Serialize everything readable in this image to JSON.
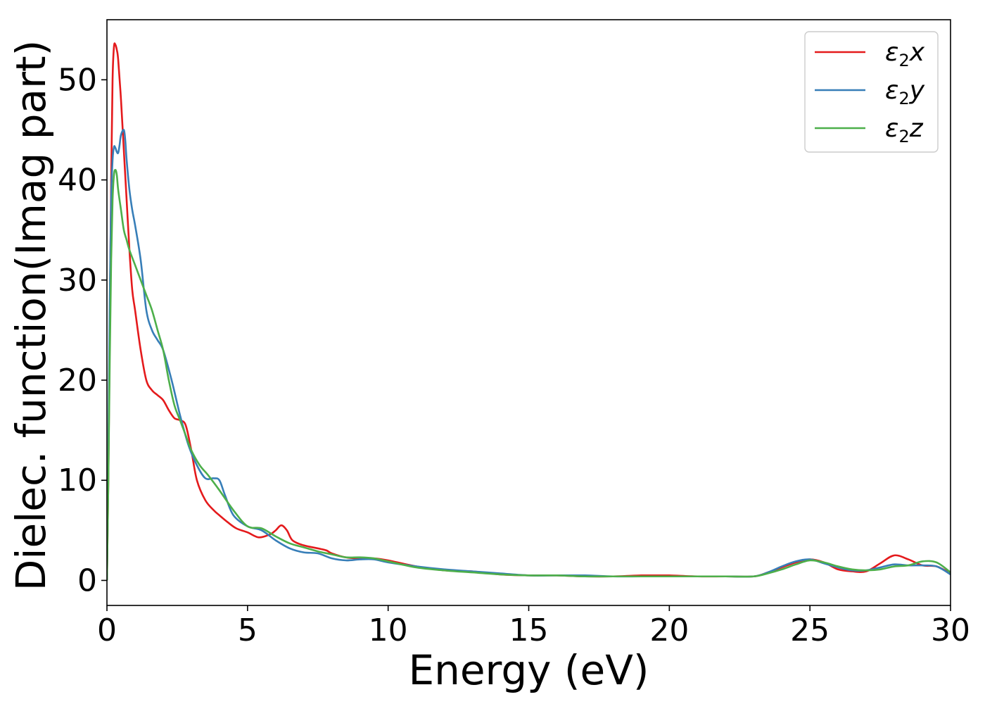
{
  "chart_data": {
    "type": "line",
    "title": "",
    "xlabel": "Energy (eV)",
    "ylabel": "Dielec. function(Imag part)",
    "xlim": [
      0,
      30
    ],
    "ylim": [
      -2.5,
      56
    ],
    "xticks": [
      0,
      5,
      10,
      15,
      20,
      25,
      30
    ],
    "xtick_labels": [
      "0",
      "5",
      "10",
      "15",
      "20",
      "25",
      "30"
    ],
    "yticks": [
      0,
      10,
      20,
      30,
      40,
      50
    ],
    "ytick_labels": [
      "0",
      "10",
      "20",
      "30",
      "40",
      "50"
    ],
    "grid": false,
    "legend_position": "top-right",
    "series": [
      {
        "name": "ε2x",
        "legend_main": "ε",
        "legend_sub": "2",
        "legend_var": "x",
        "color": "#e41a1c",
        "x": [
          0,
          0.05,
          0.1,
          0.15,
          0.2,
          0.25,
          0.3,
          0.35,
          0.4,
          0.5,
          0.6,
          0.7,
          0.8,
          0.9,
          1.0,
          1.2,
          1.4,
          1.6,
          1.8,
          2.0,
          2.2,
          2.4,
          2.6,
          2.8,
          3.0,
          3.2,
          3.5,
          3.8,
          4.0,
          4.3,
          4.6,
          5.0,
          5.4,
          5.8,
          6.0,
          6.2,
          6.4,
          6.6,
          7.0,
          7.5,
          7.8,
          8.0,
          8.5,
          9.0,
          9.5,
          10,
          11,
          12,
          13,
          14,
          15,
          16,
          17,
          18,
          19,
          19.5,
          20,
          21,
          22,
          23,
          23.5,
          24,
          24.5,
          25,
          25.5,
          26,
          26.5,
          27,
          27.5,
          28,
          28.5,
          29,
          29.5,
          30
        ],
        "y": [
          0,
          10,
          25,
          40,
          50,
          53.3,
          53.5,
          53,
          52,
          48,
          43,
          38,
          33,
          29,
          27,
          23,
          20,
          19,
          18.5,
          18,
          17,
          16.2,
          16,
          15.5,
          13,
          10,
          8,
          7,
          6.5,
          5.8,
          5.2,
          4.8,
          4.3,
          4.6,
          5.0,
          5.5,
          5.0,
          4.0,
          3.5,
          3.2,
          3.0,
          2.7,
          2.3,
          2.2,
          2.2,
          2.0,
          1.4,
          1.0,
          0.9,
          0.6,
          0.5,
          0.5,
          0.4,
          0.4,
          0.5,
          0.5,
          0.5,
          0.4,
          0.4,
          0.4,
          0.8,
          1.3,
          1.8,
          2.1,
          1.8,
          1.1,
          0.9,
          0.9,
          1.7,
          2.5,
          2.1,
          1.5,
          1.4,
          0.7
        ]
      },
      {
        "name": "ε2y",
        "legend_main": "ε",
        "legend_sub": "2",
        "legend_var": "y",
        "color": "#377eb8",
        "x": [
          0,
          0.05,
          0.1,
          0.15,
          0.2,
          0.25,
          0.3,
          0.35,
          0.4,
          0.45,
          0.5,
          0.6,
          0.65,
          0.7,
          0.8,
          0.9,
          1.0,
          1.2,
          1.4,
          1.6,
          1.8,
          2.0,
          2.3,
          2.6,
          2.9,
          3.2,
          3.5,
          3.8,
          4.0,
          4.2,
          4.5,
          5.0,
          5.5,
          6.0,
          6.5,
          7.0,
          7.5,
          8.0,
          8.5,
          9.0,
          9.5,
          10,
          11,
          12,
          13,
          14,
          15,
          16,
          17,
          18,
          19,
          20,
          21,
          22,
          23,
          23.5,
          24,
          24.5,
          25,
          25.5,
          26,
          26.5,
          27,
          27.5,
          28,
          28.5,
          29,
          29.5,
          30
        ],
        "y": [
          0,
          12,
          28,
          38,
          42,
          43.3,
          43.2,
          42.8,
          42.7,
          43.5,
          44.5,
          45,
          44,
          42,
          39,
          37,
          35.5,
          32,
          27,
          25,
          24,
          23,
          20,
          16.5,
          13.5,
          11.5,
          10.2,
          10.2,
          10,
          8.5,
          6.5,
          5.4,
          5.0,
          4.0,
          3.2,
          2.8,
          2.7,
          2.2,
          2.0,
          2.1,
          2.1,
          1.8,
          1.4,
          1.1,
          0.9,
          0.7,
          0.5,
          0.5,
          0.5,
          0.4,
          0.4,
          0.4,
          0.4,
          0.4,
          0.4,
          0.8,
          1.4,
          1.9,
          2.1,
          1.7,
          1.3,
          1.0,
          1.0,
          1.3,
          1.6,
          1.5,
          1.5,
          1.4,
          0.6
        ]
      },
      {
        "name": "ε2z",
        "legend_main": "ε",
        "legend_sub": "2",
        "legend_var": "z",
        "color": "#4daf4a",
        "x": [
          0,
          0.05,
          0.1,
          0.15,
          0.2,
          0.25,
          0.3,
          0.35,
          0.4,
          0.5,
          0.6,
          0.7,
          0.8,
          1.0,
          1.2,
          1.4,
          1.6,
          1.8,
          2.0,
          2.2,
          2.4,
          2.6,
          2.8,
          3.0,
          3.3,
          3.6,
          4.0,
          4.5,
          5.0,
          5.5,
          6.0,
          6.5,
          7.0,
          7.5,
          8.0,
          8.5,
          9.0,
          9.5,
          10,
          11,
          12,
          13,
          14,
          15,
          16,
          17,
          18,
          19,
          20,
          21,
          22,
          23,
          23.5,
          24,
          24.5,
          25,
          25.5,
          26,
          26.5,
          27,
          27.5,
          28,
          28.5,
          29,
          29.5,
          30
        ],
        "y": [
          0,
          10,
          22,
          32,
          38,
          40.5,
          41,
          40.5,
          39,
          37,
          35,
          34,
          33,
          31.5,
          30,
          28.5,
          27,
          25,
          23,
          20,
          17.5,
          16,
          14.5,
          13,
          11.5,
          10.5,
          9.0,
          7.0,
          5.4,
          5.2,
          4.4,
          3.7,
          3.3,
          2.9,
          2.6,
          2.3,
          2.3,
          2.2,
          1.9,
          1.3,
          1.0,
          0.8,
          0.6,
          0.5,
          0.5,
          0.4,
          0.4,
          0.4,
          0.4,
          0.4,
          0.4,
          0.4,
          0.7,
          1.1,
          1.6,
          2.0,
          1.8,
          1.4,
          1.1,
          1.0,
          1.1,
          1.4,
          1.5,
          1.9,
          1.8,
          0.8
        ]
      }
    ]
  }
}
